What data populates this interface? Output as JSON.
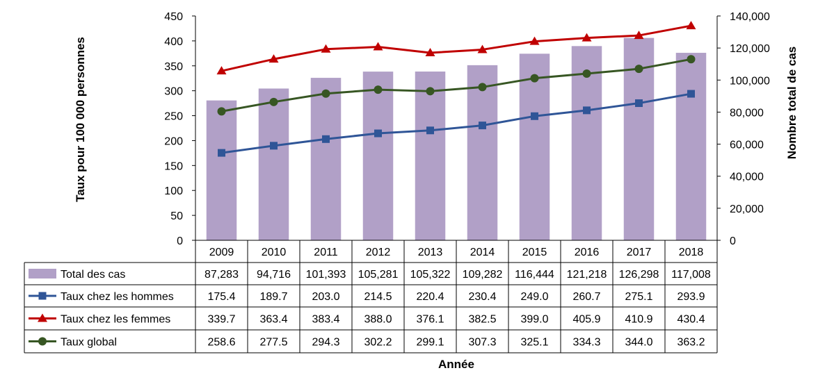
{
  "chart_data": {
    "type": "bar+line",
    "title": "",
    "xlabel": "Année",
    "ylabel_left": "Taux pour 100 000 personnes",
    "ylabel_right": "Nombre total de cas",
    "categories": [
      "2009",
      "2010",
      "2011",
      "2012",
      "2013",
      "2014",
      "2015",
      "2016",
      "2017",
      "2018"
    ],
    "ylim_left": [
      0,
      450
    ],
    "yticks_left": [
      "0",
      "50",
      "100",
      "150",
      "200",
      "250",
      "300",
      "350",
      "400",
      "450"
    ],
    "ylim_right": [
      0,
      140000
    ],
    "yticks_right": [
      "0",
      "20,000",
      "40,000",
      "60,000",
      "80,000",
      "100,000",
      "120,000",
      "140,000"
    ],
    "series": [
      {
        "name": "Total des cas",
        "kind": "bar",
        "axis": "right",
        "color": "#b1a0c7",
        "values": [
          87283,
          94716,
          101393,
          105281,
          105322,
          109282,
          116444,
          121218,
          126298,
          117008
        ],
        "labels": [
          "87,283",
          "94,716",
          "101,393",
          "105,281",
          "105,322",
          "109,282",
          "116,444",
          "121,218",
          "126,298",
          "117,008"
        ]
      },
      {
        "name": "Taux chez les hommes",
        "kind": "line",
        "marker": "square",
        "axis": "left",
        "color": "#2f5597",
        "values": [
          175.4,
          189.7,
          203.0,
          214.5,
          220.4,
          230.4,
          249.0,
          260.7,
          275.1,
          293.9
        ],
        "labels": [
          "175.4",
          "189.7",
          "203.0",
          "214.5",
          "220.4",
          "230.4",
          "249.0",
          "260.7",
          "275.1",
          "293.9"
        ]
      },
      {
        "name": "Taux chez les femmes",
        "kind": "line",
        "marker": "triangle",
        "axis": "left",
        "color": "#c00000",
        "values": [
          339.7,
          363.4,
          383.4,
          388.0,
          376.1,
          382.5,
          399.0,
          405.9,
          410.9,
          430.4
        ],
        "labels": [
          "339.7",
          "363.4",
          "383.4",
          "388.0",
          "376.1",
          "382.5",
          "399.0",
          "405.9",
          "410.9",
          "430.4"
        ]
      },
      {
        "name": "Taux global",
        "kind": "line",
        "marker": "circle",
        "axis": "left",
        "color": "#375623",
        "values": [
          258.6,
          277.5,
          294.3,
          302.2,
          299.1,
          307.3,
          325.1,
          334.3,
          344.0,
          363.2
        ],
        "labels": [
          "258.6",
          "277.5",
          "294.3",
          "302.2",
          "299.1",
          "307.3",
          "325.1",
          "334.3",
          "344.0",
          "363.2"
        ]
      }
    ],
    "grid": false,
    "legend": "data-table"
  }
}
